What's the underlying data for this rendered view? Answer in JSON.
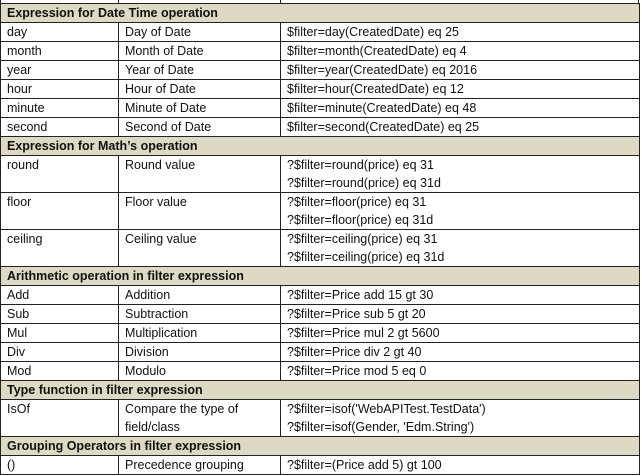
{
  "sections": [
    {
      "title": "Expression for Date Time operation",
      "rows": [
        {
          "name": "day",
          "description": "Day of Date",
          "example": [
            "$filter=day(CreatedDate) eq 25"
          ]
        },
        {
          "name": "month",
          "description": "Month of Date",
          "example": [
            "$filter=month(CreatedDate) eq 4"
          ]
        },
        {
          "name": "year",
          "description": "Year of Date",
          "example": [
            "$filter=year(CreatedDate) eq 2016"
          ]
        },
        {
          "name": "hour",
          "description": "Hour of Date",
          "example": [
            "$filter=hour(CreatedDate) eq 12"
          ]
        },
        {
          "name": "minute",
          "description": "Minute of Date",
          "example": [
            "$filter=minute(CreatedDate) eq 48"
          ]
        },
        {
          "name": "second",
          "description": "Second of Date",
          "example": [
            "$filter=second(CreatedDate) eq 25"
          ]
        }
      ]
    },
    {
      "title": "Expression for Math’s operation",
      "rows": [
        {
          "name": "round",
          "description": "Round value",
          "example": [
            "?$filter=round(price) eq 31",
            "?$filter=round(price) eq 31d"
          ]
        },
        {
          "name": "floor",
          "description": "Floor value",
          "example": [
            "?$filter=floor(price) eq 31",
            "?$filter=floor(price) eq 31d"
          ]
        },
        {
          "name": "ceiling",
          "description": "Ceiling value",
          "example": [
            "?$filter=ceiling(price) eq 31",
            "?$filter=ceiling(price) eq 31d"
          ]
        }
      ]
    },
    {
      "title": "Arithmetic operation in filter expression",
      "rows": [
        {
          "name": "Add",
          "description": "Addition",
          "example": [
            "?$filter=Price add 15 gt 30"
          ]
        },
        {
          "name": "Sub",
          "description": "Subtraction",
          "example": [
            "?$filter=Price sub 5 gt 20"
          ]
        },
        {
          "name": "Mul",
          "description": "Multiplication",
          "example": [
            "?$filter=Price mul 2 gt 5600"
          ]
        },
        {
          "name": "Div",
          "description": "Division",
          "example": [
            "?$filter=Price div 2 gt 40"
          ]
        },
        {
          "name": "Mod",
          "description": "Modulo",
          "example": [
            "?$filter=Price mod 5 eq 0"
          ]
        }
      ]
    },
    {
      "title": "Type function in filter expression",
      "rows": [
        {
          "name": "IsOf",
          "description": "Compare the type of field/class",
          "example": [
            "?$filter=isof('WebAPITest.TestData')",
            "?$filter=isof(Gender, 'Edm.String')"
          ]
        }
      ]
    },
    {
      "title": "Grouping Operators in filter expression",
      "rows": [
        {
          "name": "()",
          "description": "Precedence grouping",
          "example": [
            "?$filter=(Price add 5) gt 100"
          ]
        }
      ]
    }
  ],
  "colors": {
    "section_header_bg": "#ddd9c3",
    "border": "#222222"
  }
}
